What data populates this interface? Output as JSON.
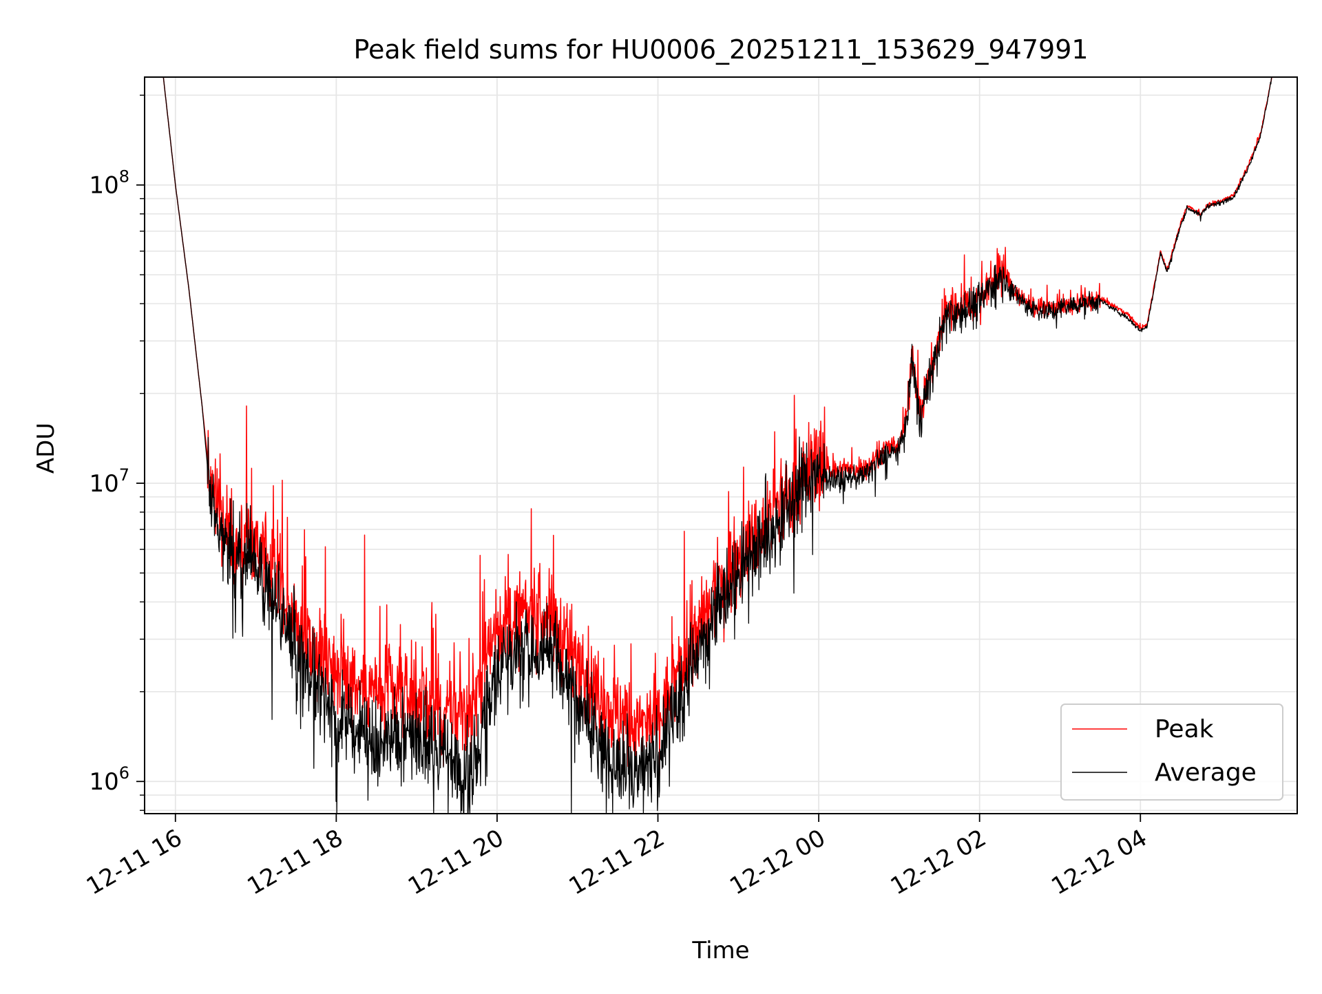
{
  "chart_data": {
    "type": "line",
    "title": "Peak field sums for HU0006_20251211_153629_947991",
    "xlabel": "Time",
    "ylabel": "ADU",
    "yscale": "log",
    "grid": true,
    "legend_placement": "lower right",
    "xlim": [
      "2025-12-11 15:37",
      "2025-12-12 05:57"
    ],
    "ylim": [
      780000,
      230000000
    ],
    "x_ticks": [
      {
        "value": "2025-12-11 16:00",
        "label": "12-11 16"
      },
      {
        "value": "2025-12-11 18:00",
        "label": "12-11 18"
      },
      {
        "value": "2025-12-11 20:00",
        "label": "12-11 20"
      },
      {
        "value": "2025-12-11 22:00",
        "label": "12-11 22"
      },
      {
        "value": "2025-12-12 00:00",
        "label": "12-12 00"
      },
      {
        "value": "2025-12-12 02:00",
        "label": "12-12 02"
      },
      {
        "value": "2025-12-12 04:00",
        "label": "12-12 04"
      }
    ],
    "y_ticks": [
      {
        "value": 1000000,
        "base": "10",
        "exp": "6"
      },
      {
        "value": 10000000,
        "base": "10",
        "exp": "7"
      },
      {
        "value": 100000000,
        "base": "10",
        "exp": "8"
      }
    ],
    "series": [
      {
        "name": "Peak",
        "color": "#ff0000",
        "x": [
          "2025-12-11 15:51",
          "2025-12-11 16:00",
          "2025-12-11 16:10",
          "2025-12-11 16:20",
          "2025-12-11 16:25",
          "2025-12-11 16:35",
          "2025-12-11 16:45",
          "2025-12-11 17:00",
          "2025-12-11 17:15",
          "2025-12-11 17:30",
          "2025-12-11 18:00",
          "2025-12-11 18:30",
          "2025-12-11 19:00",
          "2025-12-11 19:20",
          "2025-12-11 19:40",
          "2025-12-11 20:00",
          "2025-12-11 20:20",
          "2025-12-11 20:40",
          "2025-12-11 21:00",
          "2025-12-11 21:20",
          "2025-12-11 21:40",
          "2025-12-11 22:00",
          "2025-12-11 22:20",
          "2025-12-11 22:40",
          "2025-12-11 23:00",
          "2025-12-11 23:20",
          "2025-12-11 23:40",
          "2025-12-11 23:55",
          "2025-12-12 00:15",
          "2025-12-12 00:35",
          "2025-12-12 00:50",
          "2025-12-12 01:00",
          "2025-12-12 01:05",
          "2025-12-12 01:10",
          "2025-12-12 01:15",
          "2025-12-12 01:25",
          "2025-12-12 01:35",
          "2025-12-12 01:45",
          "2025-12-12 02:00",
          "2025-12-12 02:15",
          "2025-12-12 02:25",
          "2025-12-12 02:35",
          "2025-12-12 02:50",
          "2025-12-12 03:10",
          "2025-12-12 03:30",
          "2025-12-12 03:50",
          "2025-12-12 04:00",
          "2025-12-12 04:05",
          "2025-12-12 04:15",
          "2025-12-12 04:20",
          "2025-12-12 04:30",
          "2025-12-12 04:35",
          "2025-12-12 04:45",
          "2025-12-12 04:50",
          "2025-12-12 05:00",
          "2025-12-12 05:10",
          "2025-12-12 05:20",
          "2025-12-12 05:30",
          "2025-12-12 05:38"
        ],
        "values": [
          230000000,
          100000000,
          45000000,
          18000000,
          11000000,
          7300000,
          6400000,
          6300000,
          4700000,
          3300000,
          2400000,
          2000000,
          1900000,
          1600000,
          1700000,
          3300000,
          3600000,
          3500000,
          2500000,
          1800000,
          1500000,
          1600000,
          2500000,
          3900000,
          5800000,
          7000000,
          9300000,
          11500000,
          11000000,
          11200000,
          13000000,
          13500000,
          16000000,
          28000000,
          17000000,
          25000000,
          38000000,
          39000000,
          41000000,
          52000000,
          45000000,
          40000000,
          38000000,
          40000000,
          41500000,
          37000000,
          33000000,
          34000000,
          60000000,
          52000000,
          74000000,
          85000000,
          80000000,
          86000000,
          88000000,
          93000000,
          115000000,
          150000000,
          230000000
        ]
      },
      {
        "name": "Average",
        "color": "#000000",
        "x": [
          "2025-12-11 15:51",
          "2025-12-11 16:00",
          "2025-12-11 16:10",
          "2025-12-11 16:20",
          "2025-12-11 16:25",
          "2025-12-11 16:35",
          "2025-12-11 16:45",
          "2025-12-11 17:00",
          "2025-12-11 17:15",
          "2025-12-11 17:30",
          "2025-12-11 18:00",
          "2025-12-11 18:30",
          "2025-12-11 19:00",
          "2025-12-11 19:20",
          "2025-12-11 19:40",
          "2025-12-11 20:00",
          "2025-12-11 20:20",
          "2025-12-11 20:40",
          "2025-12-11 21:00",
          "2025-12-11 21:20",
          "2025-12-11 21:40",
          "2025-12-11 22:00",
          "2025-12-11 22:20",
          "2025-12-11 22:40",
          "2025-12-11 23:00",
          "2025-12-11 23:20",
          "2025-12-11 23:40",
          "2025-12-11 23:55",
          "2025-12-12 00:15",
          "2025-12-12 00:35",
          "2025-12-12 00:50",
          "2025-12-12 01:00",
          "2025-12-12 01:05",
          "2025-12-12 01:10",
          "2025-12-12 01:15",
          "2025-12-12 01:25",
          "2025-12-12 01:35",
          "2025-12-12 01:45",
          "2025-12-12 02:00",
          "2025-12-12 02:15",
          "2025-12-12 02:25",
          "2025-12-12 02:35",
          "2025-12-12 02:50",
          "2025-12-12 03:10",
          "2025-12-12 03:30",
          "2025-12-12 03:50",
          "2025-12-12 04:00",
          "2025-12-12 04:05",
          "2025-12-12 04:15",
          "2025-12-12 04:20",
          "2025-12-12 04:30",
          "2025-12-12 04:35",
          "2025-12-12 04:45",
          "2025-12-12 04:50",
          "2025-12-12 05:00",
          "2025-12-12 05:10",
          "2025-12-12 05:20",
          "2025-12-12 05:30",
          "2025-12-12 05:38"
        ],
        "values": [
          230000000,
          100000000,
          45000000,
          18000000,
          10000000,
          6300000,
          5500000,
          5600000,
          4200000,
          2700000,
          1600000,
          1400000,
          1400000,
          1250000,
          1000000,
          2500000,
          2850000,
          2700000,
          1900000,
          1250000,
          1050000,
          1200000,
          2100000,
          3600000,
          5300000,
          6500000,
          8800000,
          10800000,
          10300000,
          10700000,
          12500000,
          12800000,
          15500000,
          27000000,
          16500000,
          24000000,
          37000000,
          38000000,
          40000000,
          51000000,
          44000000,
          39500000,
          37500000,
          39500000,
          41000000,
          36000000,
          32500000,
          33500000,
          59000000,
          51000000,
          73000000,
          84000000,
          79000000,
          85000000,
          87000000,
          92000000,
          113000000,
          148000000,
          230000000
        ]
      }
    ]
  }
}
